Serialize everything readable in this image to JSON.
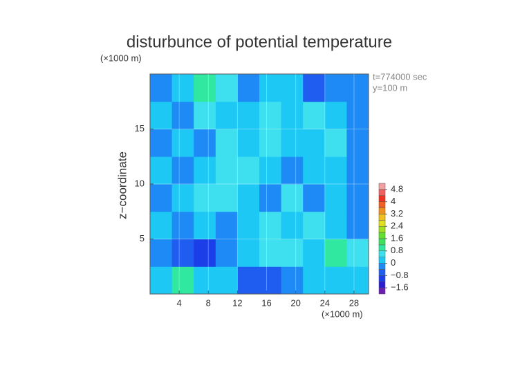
{
  "chart_data": {
    "type": "contour",
    "title": "disturbunce of potential temperature",
    "y_unit": "(×1000 m)",
    "x_unit": "(×1000 m)",
    "ylabel": "z−coordinate",
    "annotations": [
      "t=774000 sec",
      "y=100 m"
    ],
    "xlim": [
      0,
      30
    ],
    "ylim": [
      0,
      20
    ],
    "xticks": [
      4,
      8,
      12,
      16,
      20,
      24,
      28
    ],
    "yticks": [
      5,
      10,
      15
    ],
    "x": [
      1.5,
      4.5,
      7.5,
      10.5,
      13.5,
      16.5,
      19.5,
      22.5,
      25.5,
      28.5
    ],
    "y": [
      1.25,
      3.75,
      6.25,
      8.75,
      11.25,
      13.75,
      16.25,
      18.75
    ],
    "z": [
      [
        0,
        0.8,
        0,
        0,
        -0.8,
        -0.8,
        -0.4,
        0,
        0,
        0
      ],
      [
        -0.4,
        -0.8,
        -1.2,
        -0.4,
        0,
        0.4,
        0.4,
        0,
        0.8,
        0.4
      ],
      [
        0,
        -0.4,
        0,
        -0.4,
        0,
        0.4,
        0,
        0.4,
        0,
        -0.4
      ],
      [
        -0.4,
        0,
        0.4,
        0.4,
        0,
        -0.4,
        0.4,
        -0.4,
        0,
        -0.4
      ],
      [
        0,
        -0.4,
        0,
        0.4,
        0.4,
        0,
        -0.4,
        0,
        0,
        -0.4
      ],
      [
        -0.4,
        0,
        -0.4,
        0.4,
        0,
        0.4,
        0,
        0,
        0.4,
        -0.4
      ],
      [
        0,
        -0.4,
        0.4,
        0,
        0,
        0.4,
        0,
        0.4,
        0,
        -0.4
      ],
      [
        -0.4,
        0,
        0.8,
        0.4,
        -0.4,
        0,
        0,
        -0.8,
        -0.4,
        -0.4
      ]
    ],
    "levels": [
      -2,
      -1.6,
      -1.2,
      -0.8,
      -0.4,
      0,
      0.4,
      0.8,
      1.2,
      1.6,
      2,
      2.4,
      2.8,
      3.2,
      3.6,
      4,
      4.4,
      4.8
    ],
    "colors": [
      "#6a1fb0",
      "#2a1ed0",
      "#1a3ee8",
      "#1f5cf0",
      "#1e8af5",
      "#1ec8f5",
      "#3ee0f0",
      "#30e8a0",
      "#40e060",
      "#60e030",
      "#a0e020",
      "#e0e020",
      "#f0c020",
      "#f09020",
      "#f06020",
      "#f03020",
      "#f06060",
      "#f0a0a0"
    ],
    "cblim": [
      -2,
      5.2
    ],
    "cbticks": [
      {
        "value": -1.6,
        "label": "−1.6"
      },
      {
        "value": -0.8,
        "label": "−0.8"
      },
      0,
      0.8,
      1.6,
      2.4,
      3.2,
      4,
      4.8
    ],
    "grid": true
  }
}
